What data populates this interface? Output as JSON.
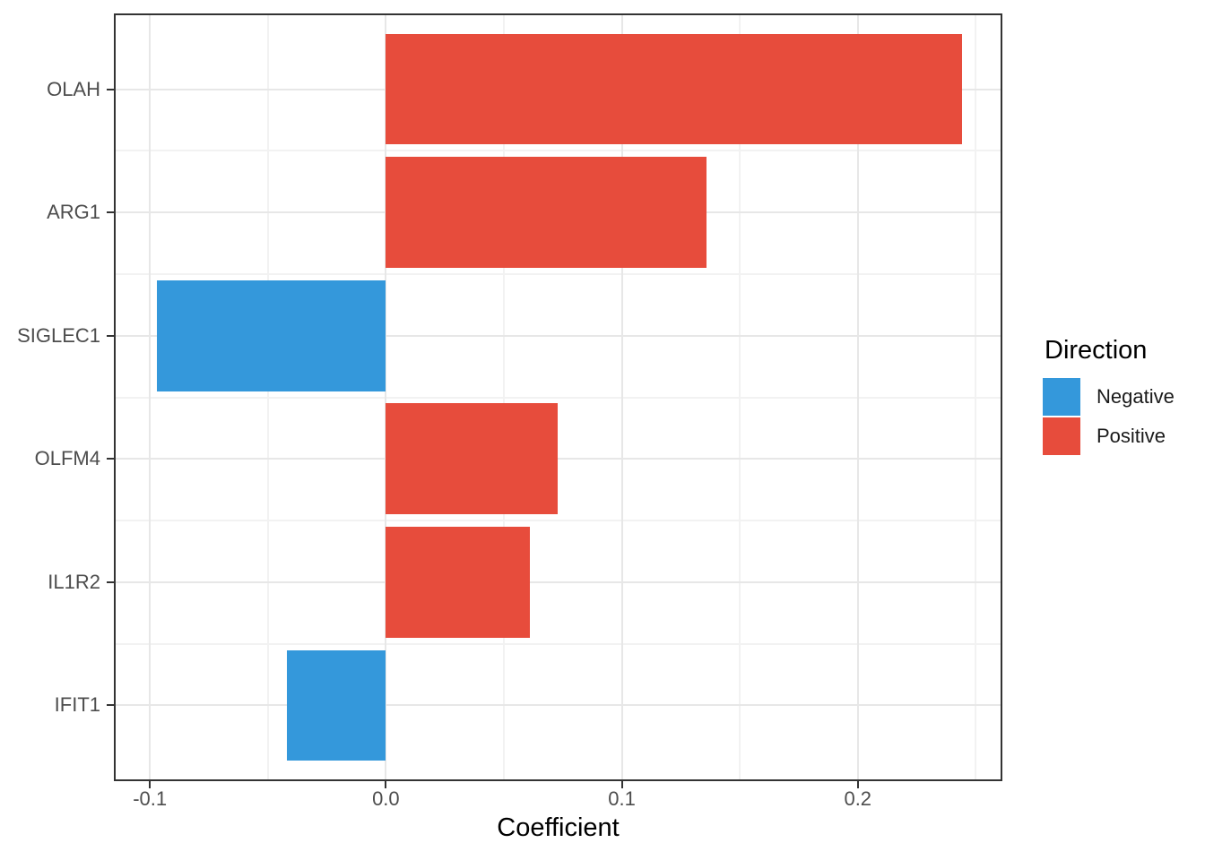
{
  "chart_data": {
    "type": "bar",
    "orientation": "horizontal",
    "title": "",
    "xlabel": "Coefficient",
    "ylabel": "",
    "categories": [
      "OLAH",
      "ARG1",
      "SIGLEC1",
      "OLFM4",
      "IL1R2",
      "IFIT1"
    ],
    "values": [
      0.244,
      0.136,
      -0.097,
      0.073,
      0.061,
      -0.042
    ],
    "directions": [
      "Positive",
      "Positive",
      "Negative",
      "Positive",
      "Positive",
      "Negative"
    ],
    "xlim": [
      -0.1145,
      0.2605
    ],
    "x_major_ticks": [
      -0.1,
      0,
      0.1,
      0.2
    ],
    "x_tick_labels": [
      "-0.1",
      "0.0",
      "0.1",
      "0.2"
    ],
    "x_minor_ticks": [
      -0.05,
      0.05,
      0.15,
      0.25
    ],
    "bar_width_fraction": 0.9,
    "grid": true,
    "legend": {
      "title": "Direction",
      "position": "right",
      "entries": [
        {
          "label": "Negative",
          "color": "#3498db"
        },
        {
          "label": "Positive",
          "color": "#e74c3c"
        }
      ]
    },
    "style": {
      "bar_colors": {
        "Negative": "#3498db",
        "Positive": "#e74c3c"
      },
      "grid_major_color": "#e7e7e7",
      "grid_minor_color": "#f2f2f2",
      "panel_border_color": "#333333",
      "axis_text_color": "#4d4d4d",
      "axis_title_color": "#000000",
      "tick_color": "#333333",
      "background": "#ffffff"
    }
  }
}
